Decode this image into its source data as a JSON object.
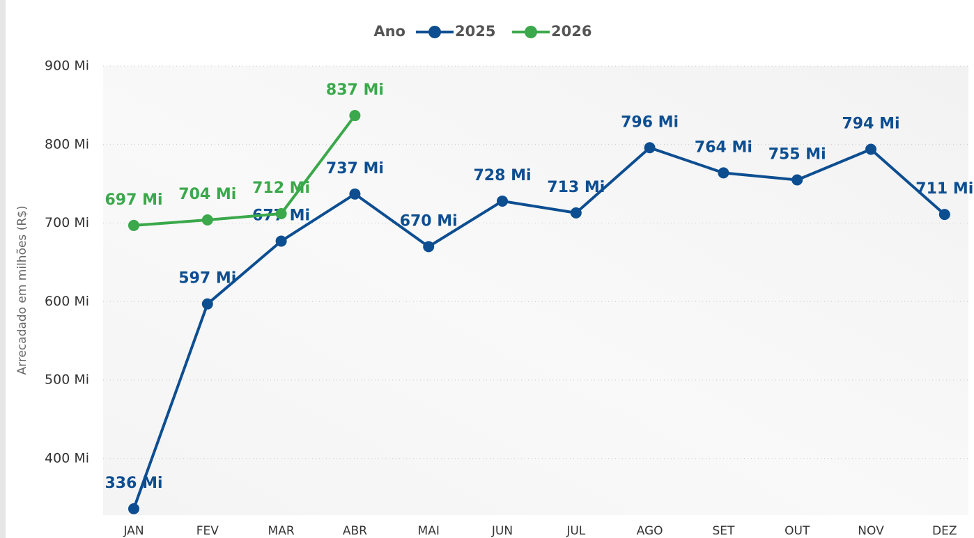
{
  "chart_data": {
    "type": "line",
    "legend_title": "Ano",
    "y_label": "Arrecadado em milhões (R$)",
    "categories": [
      "JAN",
      "FEV",
      "MAR",
      "ABR",
      "MAI",
      "JUN",
      "JUL",
      "AGO",
      "SET",
      "OUT",
      "NOV",
      "DEZ"
    ],
    "series": [
      {
        "name": "2025",
        "color": "#0d4e91",
        "values": [
          336,
          597,
          677,
          737,
          670,
          728,
          713,
          796,
          764,
          755,
          794,
          711
        ],
        "value_labels": [
          "336 Mi",
          "597 Mi",
          "677 Mi",
          "737 Mi",
          "670 Mi",
          "728 Mi",
          "713 Mi",
          "796 Mi",
          "764 Mi",
          "755 Mi",
          "794 Mi",
          "711 Mi"
        ]
      },
      {
        "name": "2026",
        "color": "#3aa84b",
        "values": [
          697,
          704,
          712,
          837,
          null,
          null,
          null,
          null,
          null,
          null,
          null,
          null
        ],
        "value_labels": [
          "697 Mi",
          "704 Mi",
          "712 Mi",
          "837 Mi",
          null,
          null,
          null,
          null,
          null,
          null,
          null,
          null
        ]
      }
    ],
    "ylim": [
      328,
      900
    ],
    "yticks": [
      {
        "value": 400,
        "label": "400 Mi"
      },
      {
        "value": 500,
        "label": "500 Mi"
      },
      {
        "value": 600,
        "label": "600 Mi"
      },
      {
        "value": 700,
        "label": "700 Mi"
      },
      {
        "value": 800,
        "label": "800 Mi"
      },
      {
        "value": 900,
        "label": "900 Mi"
      }
    ],
    "grid": true
  }
}
